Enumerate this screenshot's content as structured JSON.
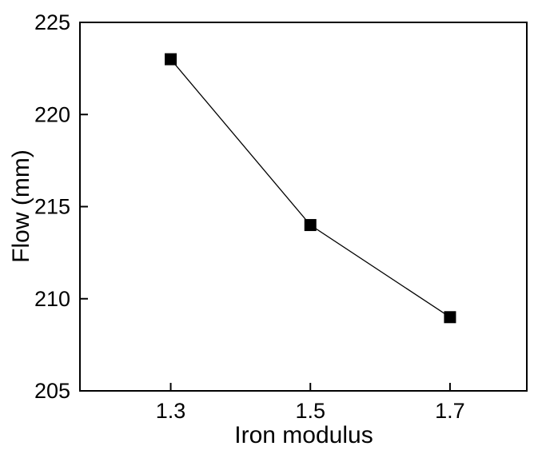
{
  "chart_data": {
    "type": "line",
    "title": "",
    "xlabel": "Iron modulus",
    "ylabel": "Flow (mm)",
    "series": [
      {
        "name": "Flow",
        "x": [
          1.3,
          1.5,
          1.7
        ],
        "y": [
          223,
          214,
          209
        ],
        "marker": "square",
        "color": "#000000",
        "line_width": 1.3,
        "marker_size": 15
      }
    ],
    "xlim": [
      1.17,
      1.81
    ],
    "ylim": [
      205,
      225
    ],
    "xticks": {
      "values": [
        1.3,
        1.5,
        1.7
      ],
      "labels": [
        "1.3",
        "1.5",
        "1.7"
      ]
    },
    "yticks": {
      "values": [
        205,
        210,
        215,
        220,
        225
      ],
      "labels": [
        "205",
        "210",
        "215",
        "220",
        "225"
      ]
    },
    "grid": false,
    "legend": "none",
    "background": "#ffffff",
    "axis_color": "#000000"
  }
}
